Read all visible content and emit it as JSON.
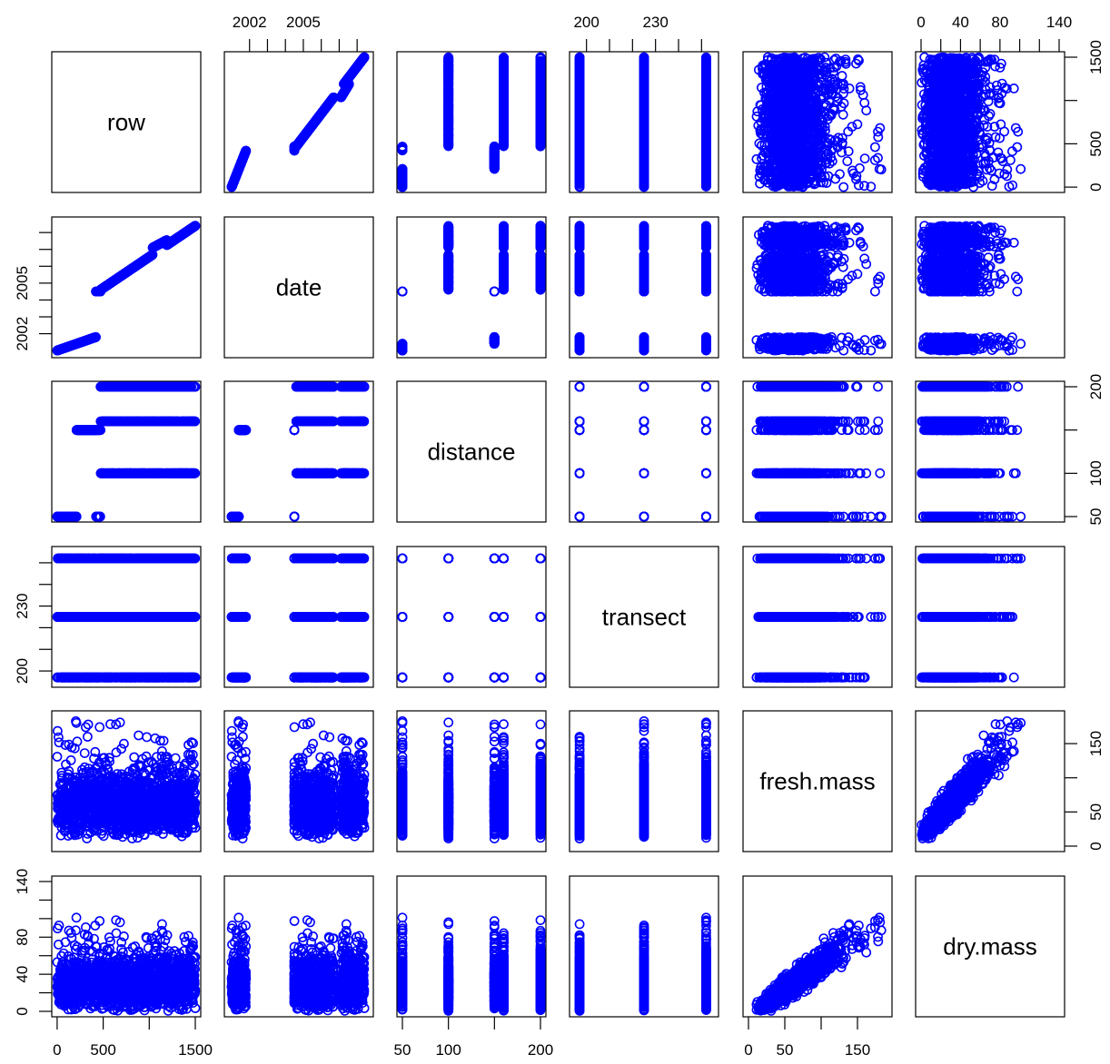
{
  "chart_data": {
    "type": "scatter",
    "point_color": "#0000FF",
    "variables": [
      {
        "name": "row",
        "range": [
          1,
          1500
        ],
        "ticks": [
          0,
          500,
          1000,
          1500
        ],
        "tick_labels": [
          "0",
          "500",
          "",
          "1500"
        ],
        "tick_side": "bottom"
      },
      {
        "name": "date",
        "range": [
          2000.9,
          2008.6
        ],
        "ticks": [
          2002,
          2003,
          2004,
          2005,
          2006,
          2007,
          2008
        ],
        "tick_labels": [
          "2002",
          "",
          "",
          "2005",
          "",
          "",
          ""
        ],
        "tick_side": "top_left"
      },
      {
        "name": "distance",
        "range": [
          50,
          200
        ],
        "ticks": [
          50,
          100,
          150,
          200
        ],
        "tick_labels": [
          "50",
          "100",
          "",
          "200"
        ],
        "tick_side": "bottom_right"
      },
      {
        "name": "transect",
        "range": [
          195,
          255
        ],
        "ticks": [
          200,
          210,
          220,
          230,
          240,
          250
        ],
        "tick_labels": [
          "200",
          "",
          "",
          "230",
          "",
          ""
        ],
        "tick_side": "top_left"
      },
      {
        "name": "fresh.mass",
        "range": [
          0,
          190
        ],
        "ticks": [
          0,
          50,
          100,
          150
        ],
        "tick_labels": [
          "0",
          "50",
          "",
          "150"
        ],
        "tick_side": "bottom_right"
      },
      {
        "name": "dry.mass",
        "range": [
          0,
          140
        ],
        "ticks": [
          0,
          20,
          40,
          60,
          80,
          100,
          120,
          140
        ],
        "tick_labels": [
          "0",
          "",
          "40",
          "",
          "80",
          "",
          "",
          "140"
        ],
        "tick_side": "top_left"
      }
    ]
  }
}
